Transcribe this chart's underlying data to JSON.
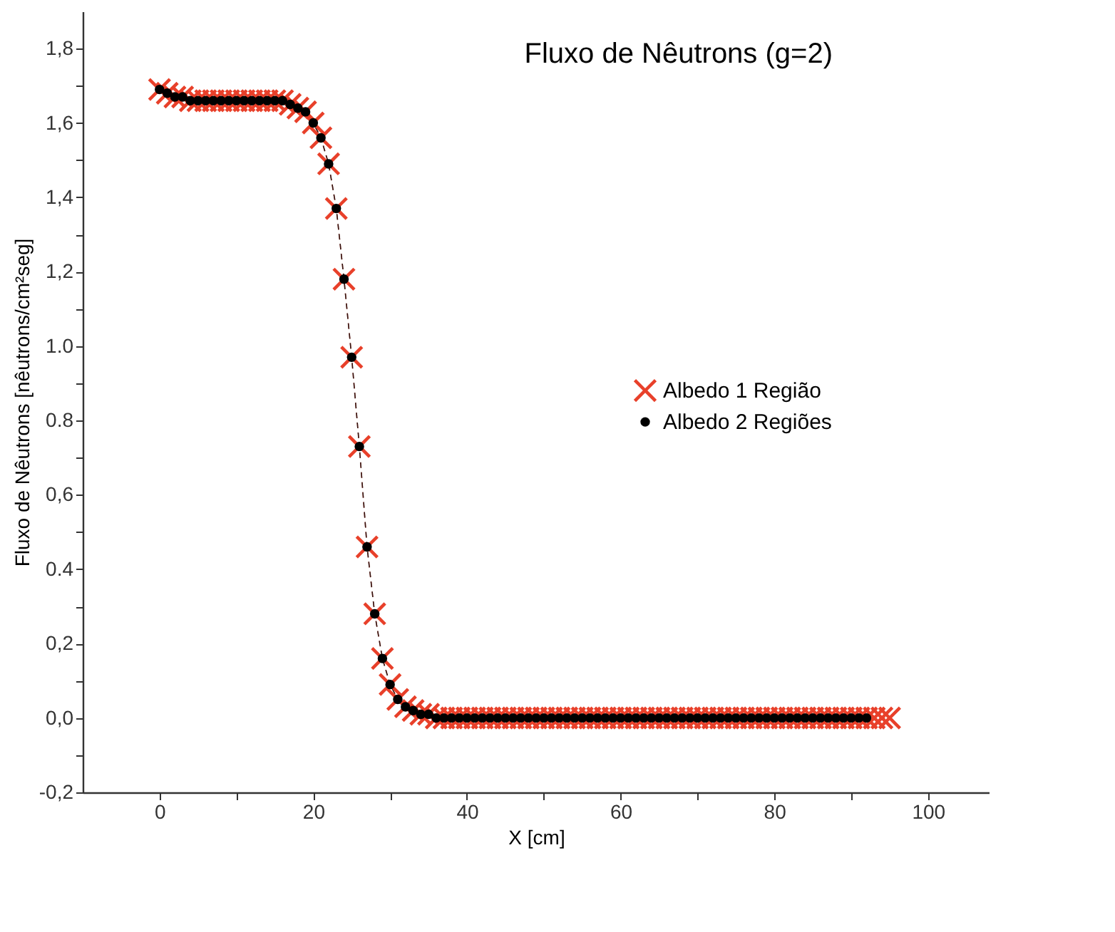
{
  "chart_data": {
    "type": "line",
    "title": "Fluxo de Nêutrons (g=2)",
    "xlabel": "X [cm]",
    "ylabel": "Fluxo de Nêutrons [nêutrons/cm²seg]",
    "xlim": [
      -10,
      108
    ],
    "ylim": [
      -0.2,
      1.9
    ],
    "xticks": [
      0,
      {
        "value": 10,
        "label": null
      },
      20,
      {
        "value": 30,
        "label": null
      },
      40,
      {
        "value": 50,
        "label": null
      },
      60,
      {
        "value": 70,
        "label": null
      },
      80,
      {
        "value": 90,
        "label": null
      },
      100
    ],
    "yticks": [
      {
        "value": -0.2,
        "label": "-0,2"
      },
      {
        "value": -0.1,
        "label": null
      },
      {
        "value": 0,
        "label": "0,0"
      },
      {
        "value": 0.1,
        "label": null
      },
      {
        "value": 0.2,
        "label": "0,2"
      },
      {
        "value": 0.3,
        "label": null
      },
      {
        "value": 0.4,
        "label": "0.4"
      },
      {
        "value": 0.5,
        "label": null
      },
      {
        "value": 0.6,
        "label": "0,6"
      },
      {
        "value": 0.7,
        "label": null
      },
      {
        "value": 0.8,
        "label": "0.8"
      },
      {
        "value": 0.9,
        "label": null
      },
      {
        "value": 1.0,
        "label": "1.0"
      },
      {
        "value": 1.1,
        "label": null
      },
      {
        "value": 1.2,
        "label": "1,2"
      },
      {
        "value": 1.3,
        "label": null
      },
      {
        "value": 1.4,
        "label": "1,4"
      },
      {
        "value": 1.5,
        "label": null
      },
      {
        "value": 1.6,
        "label": "1,6"
      },
      {
        "value": 1.7,
        "label": null
      },
      {
        "value": 1.8,
        "label": "1,8"
      }
    ],
    "legend": "right",
    "line_style": "dashed",
    "series": [
      {
        "name": "Albedo 1 Região",
        "color": "#e8402a",
        "marker": "cross",
        "x": [
          0,
          1,
          2,
          3,
          4,
          5,
          6,
          7,
          8,
          9,
          10,
          11,
          12,
          13,
          14,
          15,
          16,
          17,
          18,
          19,
          20,
          21,
          22,
          23,
          24,
          25,
          26,
          27,
          28,
          29,
          30,
          31,
          32,
          33,
          34,
          35,
          36,
          37,
          38,
          39,
          40,
          41,
          42,
          43,
          44,
          45,
          46,
          47,
          48,
          49,
          50,
          51,
          52,
          53,
          54,
          55,
          56,
          57,
          58,
          59,
          60,
          61,
          62,
          63,
          64,
          65,
          66,
          67,
          68,
          69,
          70,
          71,
          72,
          73,
          74,
          75,
          76,
          77,
          78,
          79,
          80,
          81,
          82,
          83,
          84,
          85,
          86,
          87,
          88,
          89,
          90,
          91,
          92,
          93,
          94,
          95
        ],
        "values": [
          1.69,
          1.68,
          1.67,
          1.67,
          1.66,
          1.66,
          1.66,
          1.66,
          1.66,
          1.66,
          1.66,
          1.66,
          1.66,
          1.66,
          1.66,
          1.66,
          1.66,
          1.65,
          1.64,
          1.63,
          1.6,
          1.56,
          1.49,
          1.37,
          1.18,
          0.97,
          0.73,
          0.46,
          0.28,
          0.16,
          0.09,
          0.05,
          0.03,
          0.02,
          0.01,
          0.01,
          0,
          0,
          0,
          0,
          0,
          0,
          0,
          0,
          0,
          0,
          0,
          0,
          0,
          0,
          0,
          0,
          0,
          0,
          0,
          0,
          0,
          0,
          0,
          0,
          0,
          0,
          0,
          0,
          0,
          0,
          0,
          0,
          0,
          0,
          0,
          0,
          0,
          0,
          0,
          0,
          0,
          0,
          0,
          0,
          0,
          0,
          0,
          0,
          0,
          0,
          0,
          0,
          0,
          0,
          0,
          0,
          0,
          0,
          0,
          0
        ]
      },
      {
        "name": "Albedo 2 Regiões",
        "color": "#000000",
        "marker": "circle",
        "x": [
          0,
          1,
          2,
          3,
          4,
          5,
          6,
          7,
          8,
          9,
          10,
          11,
          12,
          13,
          14,
          15,
          16,
          17,
          18,
          19,
          20,
          21,
          22,
          23,
          24,
          25,
          26,
          27,
          28,
          29,
          30,
          31,
          32,
          33,
          34,
          35,
          36,
          37,
          38,
          39,
          40,
          41,
          42,
          43,
          44,
          45,
          46,
          47,
          48,
          49,
          50,
          51,
          52,
          53,
          54,
          55,
          56,
          57,
          58,
          59,
          60,
          61,
          62,
          63,
          64,
          65,
          66,
          67,
          68,
          69,
          70,
          71,
          72,
          73,
          74,
          75,
          76,
          77,
          78,
          79,
          80,
          81,
          82,
          83,
          84,
          85,
          86,
          87,
          88,
          89,
          90,
          91,
          92
        ],
        "values": [
          1.69,
          1.68,
          1.67,
          1.67,
          1.66,
          1.66,
          1.66,
          1.66,
          1.66,
          1.66,
          1.66,
          1.66,
          1.66,
          1.66,
          1.66,
          1.66,
          1.66,
          1.65,
          1.64,
          1.63,
          1.6,
          1.56,
          1.49,
          1.37,
          1.18,
          0.97,
          0.73,
          0.46,
          0.28,
          0.16,
          0.09,
          0.05,
          0.03,
          0.02,
          0.01,
          0.01,
          0,
          0,
          0,
          0,
          0,
          0,
          0,
          0,
          0,
          0,
          0,
          0,
          0,
          0,
          0,
          0,
          0,
          0,
          0,
          0,
          0,
          0,
          0,
          0,
          0,
          0,
          0,
          0,
          0,
          0,
          0,
          0,
          0,
          0,
          0,
          0,
          0,
          0,
          0,
          0,
          0,
          0,
          0,
          0,
          0,
          0,
          0,
          0,
          0,
          0,
          0,
          0,
          0,
          0,
          0,
          0,
          0
        ]
      }
    ]
  }
}
